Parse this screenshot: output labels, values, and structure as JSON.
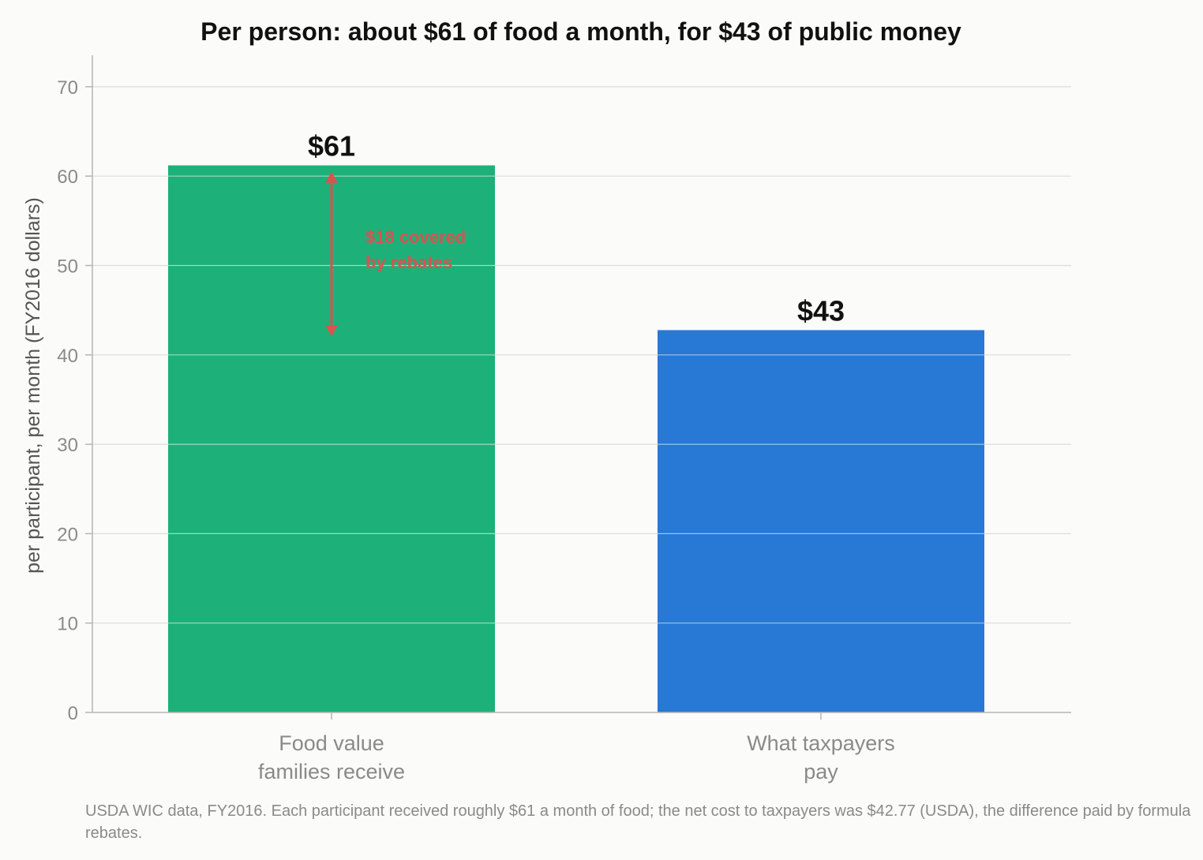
{
  "chart_data": {
    "type": "bar",
    "title": "Per person: about $61 of food a month, for $43 of public money",
    "ylabel": "per participant, per month (FY2016 dollars)",
    "xlabel": "",
    "categories": [
      [
        "Food value",
        "families receive"
      ],
      [
        "What taxpayers",
        "pay"
      ]
    ],
    "values": [
      61.2,
      42.77
    ],
    "data_labels": [
      "$61",
      "$43"
    ],
    "colors": [
      "#1db179",
      "#2878d6"
    ],
    "ylim": [
      0,
      73
    ],
    "yticks": [
      0,
      10,
      20,
      30,
      40,
      50,
      60,
      70
    ],
    "grid": true,
    "annotation": {
      "lines": [
        "$18 covered",
        "by rebates"
      ],
      "from_value": 61.2,
      "to_value": 42.77,
      "color": "#d9534f"
    }
  },
  "caption": "USDA WIC data, FY2016. Each participant received roughly $61 a month of food; the net cost to taxpayers was $42.77 (USDA), the difference paid by formula rebates."
}
